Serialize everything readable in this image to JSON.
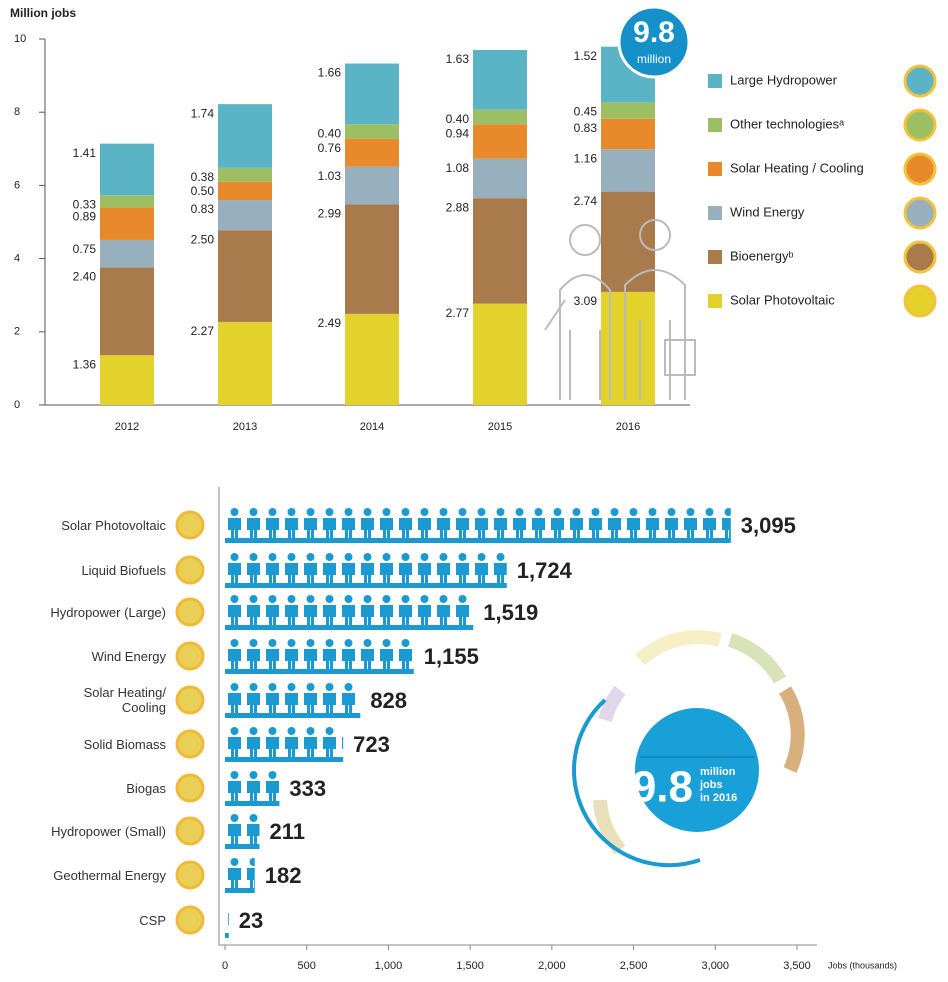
{
  "chart_data": [
    {
      "type": "stacked-bar",
      "y_label": "Million jobs",
      "categories": [
        "2012",
        "2013",
        "2014",
        "2015",
        "2016"
      ],
      "ylim": [
        0,
        10
      ],
      "yticks": [
        0,
        2,
        4,
        6,
        8,
        10
      ],
      "series": [
        {
          "name": "Solar Photovoltaic",
          "color": "#e3d12c",
          "values": [
            1.36,
            2.27,
            2.49,
            2.77,
            3.09
          ],
          "value_labels": [
            "1.36",
            "2.27",
            "2.49",
            "2.77",
            "3.09"
          ]
        },
        {
          "name": "Bioenergyᵇ",
          "color": "#a97a4b",
          "values": [
            2.4,
            2.5,
            2.99,
            2.88,
            2.74
          ],
          "value_labels": [
            "2.40",
            "2.50",
            "2.99",
            "2.88",
            "2.74"
          ]
        },
        {
          "name": "Wind Energy",
          "color": "#98afbd",
          "values": [
            0.75,
            0.83,
            1.03,
            1.08,
            1.16
          ],
          "value_labels": [
            "0.75",
            "0.83",
            "1.03",
            "1.08",
            "1.16"
          ]
        },
        {
          "name": "Solar Heating / Cooling",
          "color": "#e8892b",
          "values": [
            0.89,
            0.5,
            0.76,
            0.94,
            0.83
          ],
          "value_labels": [
            "0.89",
            "0.50",
            "0.76",
            "0.94",
            "0.83"
          ]
        },
        {
          "name": "Other technologiesᵃ",
          "color": "#9cbf63",
          "values": [
            0.33,
            0.38,
            0.4,
            0.4,
            0.45
          ],
          "value_labels": [
            "0.33",
            "0.38",
            "0.40",
            "0.40",
            "0.45"
          ]
        },
        {
          "name": "Large Hydropower",
          "color": "#5ab4c5",
          "values": [
            1.41,
            1.74,
            1.66,
            1.63,
            1.52
          ],
          "value_labels": [
            "1.41",
            "1.74",
            "1.66",
            "1.63",
            "1.52"
          ]
        }
      ],
      "annotations": [
        "9.8",
        "million"
      ]
    },
    {
      "type": "hbar",
      "x_label": "Jobs (thousands)",
      "categories": [
        "Solar Photovoltaic",
        "Liquid Biofuels",
        "Hydropower (Large)",
        "Wind Energy",
        "Solar Heating/ Cooling",
        "Solid Biomass",
        "Biogas",
        "Hydropower (Small)",
        "Geothermal Energy",
        "CSP"
      ],
      "values": [
        3095,
        1724,
        1519,
        1155,
        828,
        723,
        333,
        211,
        182,
        23
      ],
      "value_labels": [
        "3,095",
        "1,724",
        "1,519",
        "1,155",
        "828",
        "723",
        "333",
        "211",
        "182",
        "23"
      ],
      "color": "#1a9ad0",
      "xlim": [
        0,
        3500
      ],
      "xticks": [
        0,
        500,
        {
          "value": 1000,
          "label": "1,000"
        },
        {
          "value": 1500,
          "label": "1,500"
        },
        {
          "value": 2000,
          "label": "2,000"
        },
        {
          "value": 2500,
          "label": "2,500"
        },
        {
          "value": 3000,
          "label": "3,000"
        },
        {
          "value": 3500,
          "label": "3,500"
        }
      ],
      "annotations": [
        "9.8",
        "million",
        "jobs",
        "in 2016"
      ]
    }
  ]
}
